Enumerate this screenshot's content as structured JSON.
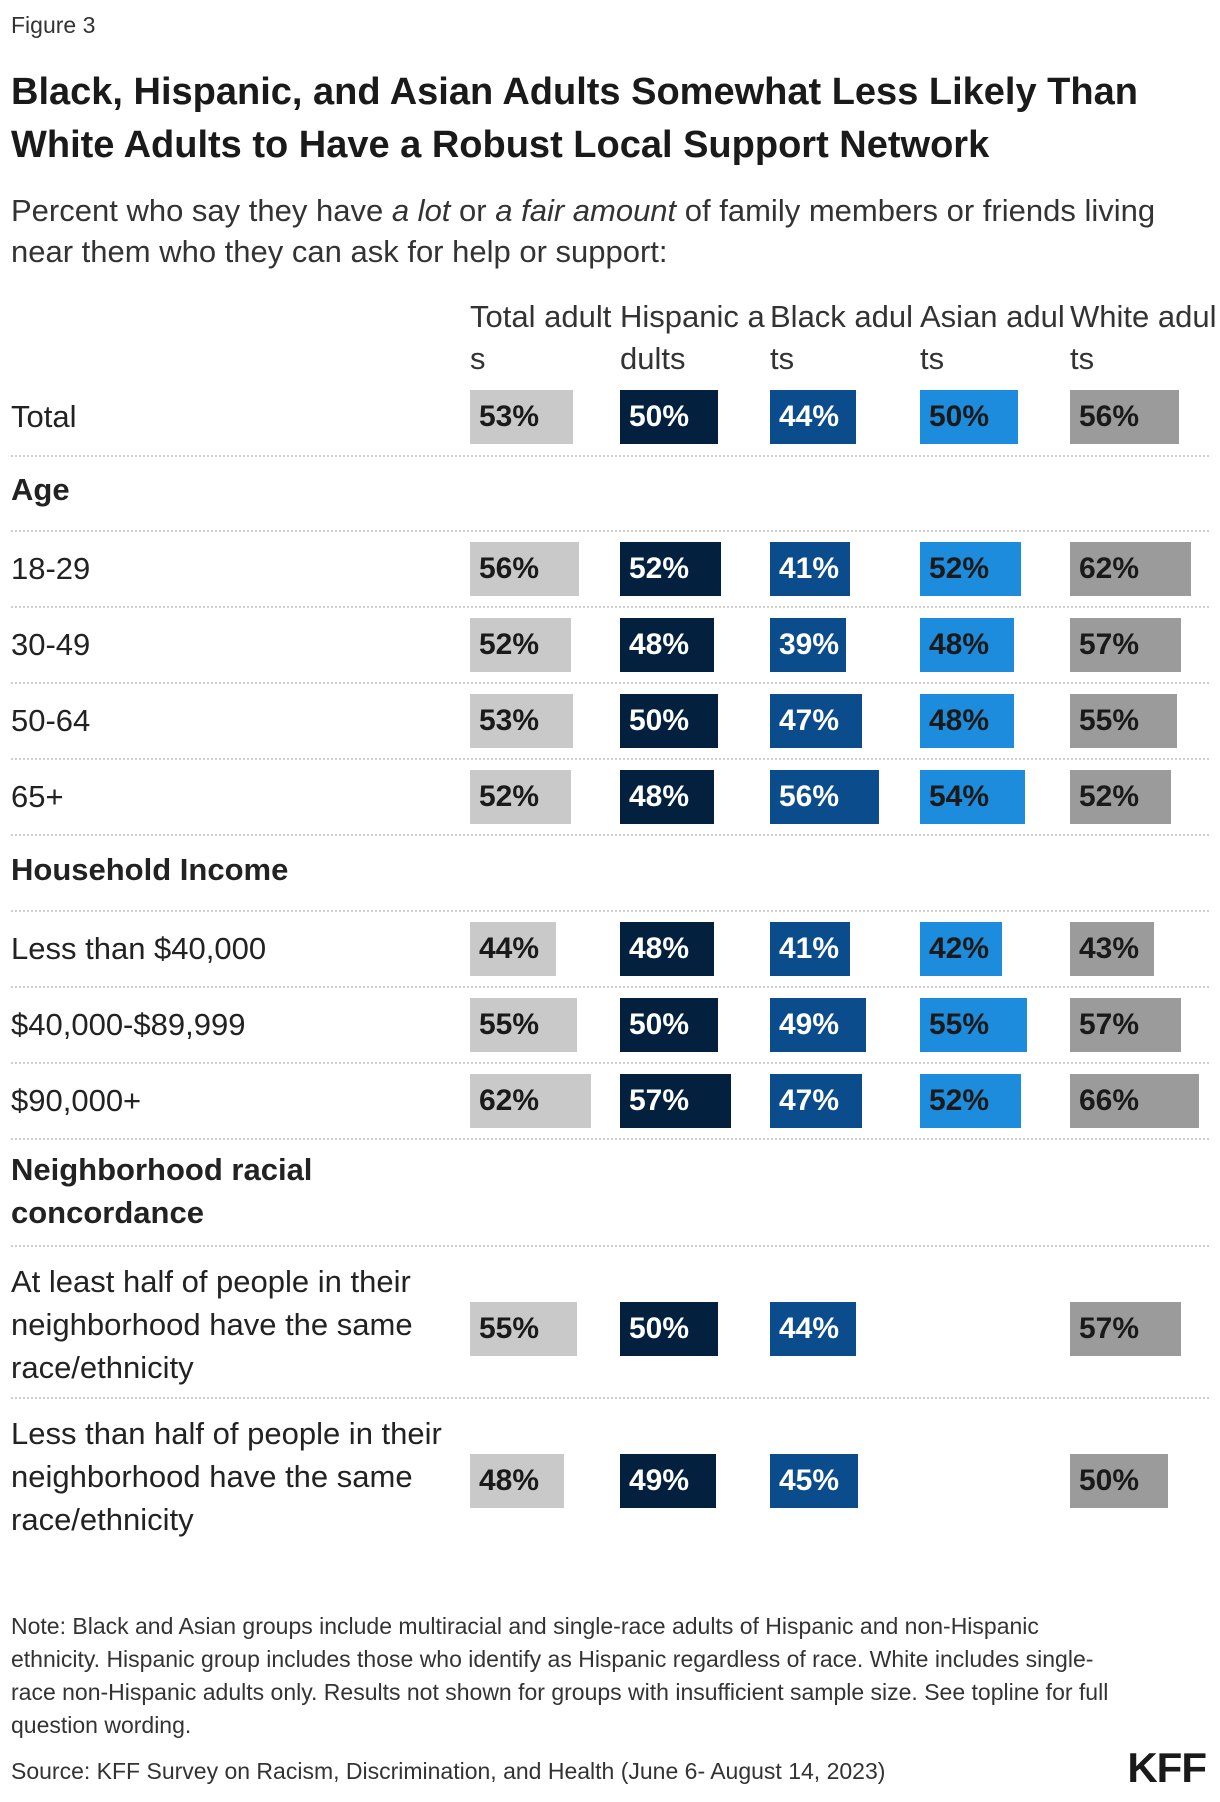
{
  "figure_label": "Figure 3",
  "chart_data": {
    "type": "table",
    "title": "Black, Hispanic, and Asian Adults Somewhat Less Likely Than White Adults to Have a Robust Local Support Network",
    "subtitle": {
      "pre": "Percent who say they have ",
      "em1": "a lot",
      "mid": " or ",
      "em2": "a fair amount",
      "post": " of family members or friends living near them who they can ask for help or support:"
    },
    "value_max": 100,
    "columns": [
      {
        "name": "Total adults",
        "color": "#c9c9c9",
        "text_color": "#1a1a1a"
      },
      {
        "name": "Hispanic adults",
        "color": "#03213f",
        "text_color": "#ffffff"
      },
      {
        "name": "Black adults",
        "color": "#0b4d8c",
        "text_color": "#ffffff"
      },
      {
        "name": "Asian adults",
        "color": "#1d8cdc",
        "text_color": "#1a1a1a"
      },
      {
        "name": "White adults",
        "color": "#9b9b9b",
        "text_color": "#1a1a1a"
      }
    ],
    "rows": [
      {
        "kind": "data",
        "label": "Total",
        "values": [
          53,
          50,
          44,
          50,
          56
        ],
        "display": [
          "53%",
          "50%",
          "44%",
          "50%",
          "56%"
        ]
      },
      {
        "kind": "section",
        "label": "Age"
      },
      {
        "kind": "data",
        "label": "18-29",
        "values": [
          56,
          52,
          41,
          52,
          62
        ],
        "display": [
          "56%",
          "52%",
          "41%",
          "52%",
          "62%"
        ]
      },
      {
        "kind": "data",
        "label": "30-49",
        "values": [
          52,
          48,
          39,
          48,
          57
        ],
        "display": [
          "52%",
          "48%",
          "39%",
          "48%",
          "57%"
        ]
      },
      {
        "kind": "data",
        "label": "50-64",
        "values": [
          53,
          50,
          47,
          48,
          55
        ],
        "display": [
          "53%",
          "50%",
          "47%",
          "48%",
          "55%"
        ]
      },
      {
        "kind": "data",
        "label": "65+",
        "values": [
          52,
          48,
          56,
          54,
          52
        ],
        "display": [
          "52%",
          "48%",
          "56%",
          "54%",
          "52%"
        ]
      },
      {
        "kind": "section",
        "label": "Household Income"
      },
      {
        "kind": "data",
        "label": "Less than $40,000",
        "values": [
          44,
          48,
          41,
          42,
          43
        ],
        "display": [
          "44%",
          "48%",
          "41%",
          "42%",
          "43%"
        ]
      },
      {
        "kind": "data",
        "label": "$40,000-$89,999",
        "values": [
          55,
          50,
          49,
          55,
          57
        ],
        "display": [
          "55%",
          "50%",
          "49%",
          "55%",
          "57%"
        ]
      },
      {
        "kind": "data",
        "label": "$90,000+",
        "values": [
          62,
          57,
          47,
          52,
          66
        ],
        "display": [
          "62%",
          "57%",
          "47%",
          "52%",
          "66%"
        ]
      },
      {
        "kind": "section",
        "label": "Neighborhood racial concordance"
      },
      {
        "kind": "data",
        "label": "At least half of people in their neighborhood have the same race/ethnicity",
        "values": [
          55,
          50,
          44,
          null,
          57
        ],
        "display": [
          "55%",
          "50%",
          "44%",
          "",
          "57%"
        ]
      },
      {
        "kind": "data",
        "label": "Less than half of people in their neighborhood have the same race/ethnicity",
        "values": [
          48,
          49,
          45,
          null,
          50
        ],
        "display": [
          "48%",
          "49%",
          "45%",
          "",
          "50%"
        ]
      }
    ]
  },
  "note": "Note: Black and Asian groups include multiracial and single-race adults of Hispanic and non-Hispanic ethnicity. Hispanic group includes those who identify as Hispanic regardless of race. White includes single-race non-Hispanic adults only. Results not shown for groups with insufficient sample size. See topline for full question wording.",
  "source": "Source: KFF Survey on Racism, Discrimination, and Health (June 6- August 14, 2023)",
  "logo": "KFF"
}
